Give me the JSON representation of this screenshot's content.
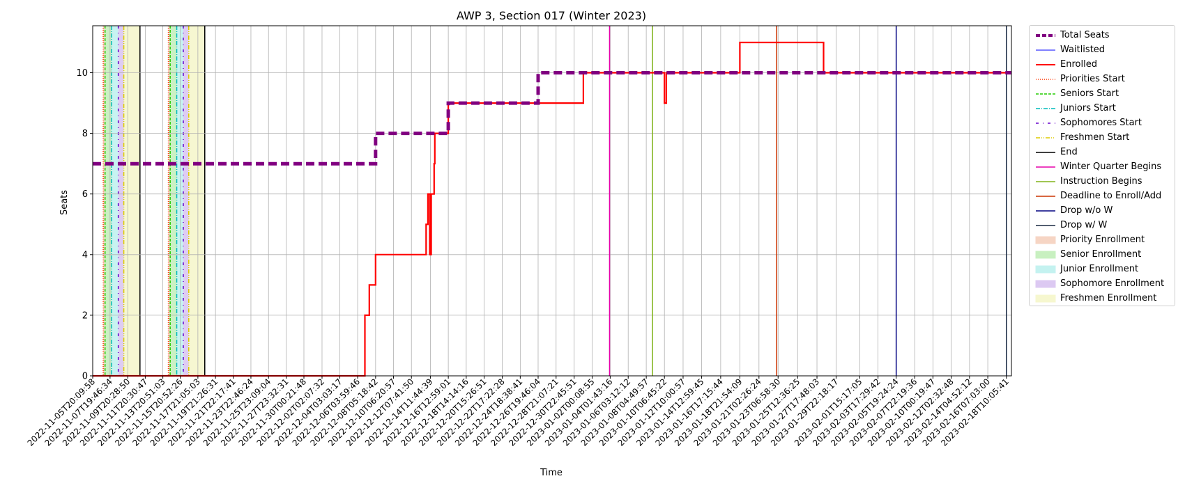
{
  "chart_data": {
    "type": "line",
    "title": "AWP 3, Section 017 (Winter 2023)",
    "xlabel": "Time",
    "ylabel": "Seats",
    "ylim": [
      0,
      11.55
    ],
    "yticks": [
      0,
      2,
      4,
      6,
      8,
      10
    ],
    "x_range": [
      "2022-11-05T20:09:58",
      "2023-02-19T00:00:00"
    ],
    "grid": true,
    "legend_position": "outside-right",
    "xtick_labels": [
      "2022-11-05T20:09:58",
      "2022-11-07T19:46:34",
      "2022-11-09T20:28:50",
      "2022-11-11T20:30:47",
      "2022-11-13T20:51:03",
      "2022-11-15T20:52:26",
      "2022-11-17T21:05:03",
      "2022-11-19T21:26:31",
      "2022-11-21T22:17:41",
      "2022-11-23T22:46:24",
      "2022-11-25T23:09:04",
      "2022-11-27T23:32:31",
      "2022-11-30T00:21:48",
      "2022-12-02T02:07:32",
      "2022-12-04T03:03:17",
      "2022-12-06T03:59:46",
      "2022-12-08T05:18:42",
      "2022-12-10T06:20:57",
      "2022-12-12T07:41:50",
      "2022-12-14T11:44:39",
      "2022-12-16T12:59:01",
      "2022-12-18T14:14:16",
      "2022-12-20T15:26:51",
      "2022-12-22T17:22:28",
      "2022-12-24T18:38:41",
      "2022-12-26T19:46:04",
      "2022-12-28T21:07:21",
      "2022-12-30T22:45:51",
      "2023-01-02T00:08:55",
      "2023-01-04T01:43:16",
      "2023-01-06T03:12:12",
      "2023-01-08T04:49:57",
      "2023-01-10T06:45:22",
      "2023-01-12T10:00:57",
      "2023-01-14T12:59:45",
      "2023-01-16T17:15:44",
      "2023-01-18T21:54:09",
      "2023-01-21T02:26:24",
      "2023-01-23T06:58:30",
      "2023-01-25T12:36:25",
      "2023-01-27T17:48:03",
      "2023-01-29T22:18:17",
      "2023-02-01T15:17:05",
      "2023-02-03T17:29:42",
      "2023-02-05T19:24:24",
      "2023-02-07T22:19:36",
      "2023-02-10T00:19:47",
      "2023-02-12T02:32:48",
      "2023-02-14T04:52:12",
      "2023-02-16T07:03:00",
      "2023-02-18T10:05:41"
    ],
    "series": [
      {
        "name": "Total Seats",
        "color": "#800080",
        "style": "dashed-thick",
        "points": [
          [
            "2022-11-05T20:09:58",
            7
          ],
          [
            "2022-12-08T05:18:42",
            7
          ],
          [
            "2022-12-08T05:18:42",
            8
          ],
          [
            "2022-12-16T12:59:01",
            8
          ],
          [
            "2022-12-16T12:59:01",
            9
          ],
          [
            "2022-12-26T19:46:04",
            9
          ],
          [
            "2022-12-26T19:46:04",
            10
          ],
          [
            "2023-02-19T00:00:00",
            10
          ]
        ]
      },
      {
        "name": "Waitlisted",
        "color": "#0000ff",
        "style": "solid-thin",
        "points": [
          [
            "2022-11-05T20:09:58",
            0
          ],
          [
            "2023-02-19T00:00:00",
            0
          ]
        ]
      },
      {
        "name": "Enrolled",
        "color": "#ff0000",
        "style": "solid-thick",
        "points": [
          [
            "2022-11-05T20:09:58",
            0
          ],
          [
            "2022-12-07T00:00:00",
            0
          ],
          [
            "2022-12-07T00:00:00",
            1
          ],
          [
            "2022-12-07T00:00:00",
            2
          ],
          [
            "2022-12-07T12:00:00",
            2
          ],
          [
            "2022-12-07T12:00:00",
            3
          ],
          [
            "2022-12-08T05:18:42",
            3
          ],
          [
            "2022-12-08T05:18:42",
            4
          ],
          [
            "2022-12-14T00:00:00",
            4
          ],
          [
            "2022-12-14T00:00:00",
            5
          ],
          [
            "2022-12-14T05:00:00",
            5
          ],
          [
            "2022-12-14T05:00:00",
            6
          ],
          [
            "2022-12-14T10:00:00",
            6
          ],
          [
            "2022-12-14T10:00:00",
            4
          ],
          [
            "2022-12-14T14:00:00",
            4
          ],
          [
            "2022-12-14T14:00:00",
            6
          ],
          [
            "2022-12-14T22:00:00",
            6
          ],
          [
            "2022-12-14T22:00:00",
            7
          ],
          [
            "2022-12-15T00:00:00",
            7
          ],
          [
            "2022-12-15T00:00:00",
            8
          ],
          [
            "2022-12-16T12:59:01",
            8
          ],
          [
            "2022-12-16T12:59:01",
            9
          ],
          [
            "2023-01-01T00:00:00",
            9
          ],
          [
            "2023-01-01T00:00:00",
            10
          ],
          [
            "2023-01-10T06:45:22",
            10
          ],
          [
            "2023-01-10T06:45:22",
            9
          ],
          [
            "2023-01-10T12:00:00",
            9
          ],
          [
            "2023-01-10T12:00:00",
            10
          ],
          [
            "2023-01-18T21:54:09",
            10
          ],
          [
            "2023-01-18T21:54:09",
            11
          ],
          [
            "2023-01-28T12:00:00",
            11
          ],
          [
            "2023-01-28T12:00:00",
            10
          ],
          [
            "2023-02-19T00:00:00",
            10
          ]
        ]
      }
    ],
    "phases": [
      {
        "starts": [
          "2022-11-07T01:00:00",
          "2022-11-14T12:00:00"
        ],
        "ends": [
          "2022-11-11T06:00:00",
          "2022-11-18T16:00:00"
        ]
      }
    ],
    "vertical_events": [
      {
        "name": "Winter Quarter Begins",
        "date": "2023-01-04T00:00:00",
        "color": "#e600aa"
      },
      {
        "name": "Instruction Begins",
        "date": "2023-01-08T22:00:00",
        "color": "#80b31a"
      },
      {
        "name": "Deadline to Enroll/Add",
        "date": "2023-01-23T03:00:00",
        "color": "#cc3300"
      },
      {
        "name": "Drop w/o W",
        "date": "2023-02-05T19:24:24",
        "color": "#000080"
      },
      {
        "name": "Drop w/ W",
        "date": "2023-02-18T10:05:41",
        "color": "#1a2a44"
      }
    ],
    "legend": [
      {
        "label": "Total Seats",
        "kind": "line",
        "color": "#800080",
        "dash": "6,3",
        "width": 4
      },
      {
        "label": "Waitlisted",
        "kind": "line",
        "color": "#0000ff",
        "dash": "",
        "width": 1
      },
      {
        "label": "Enrolled",
        "kind": "line",
        "color": "#ff0000",
        "dash": "",
        "width": 2
      },
      {
        "label": "Priorities Start",
        "kind": "line",
        "color": "#ff3300",
        "dash": "1,2",
        "width": 1.5
      },
      {
        "label": "Seniors Start",
        "kind": "line",
        "color": "#22cc00",
        "dash": "4,2",
        "width": 1.5
      },
      {
        "label": "Juniors Start",
        "kind": "line",
        "color": "#00bbbb",
        "dash": "6,2,1,2",
        "width": 1.5
      },
      {
        "label": "Sophomores Start",
        "kind": "line",
        "color": "#6600cc",
        "dash": "4,6,1,6",
        "width": 1.5
      },
      {
        "label": "Freshmen Start",
        "kind": "line",
        "color": "#ddcc00",
        "dash": "6,2,1,2,1,2",
        "width": 1.5
      },
      {
        "label": "End",
        "kind": "line",
        "color": "#000000",
        "dash": "",
        "width": 1.5
      },
      {
        "label": "Winter Quarter Begins",
        "kind": "line",
        "color": "#e600aa",
        "dash": "",
        "width": 1.5
      },
      {
        "label": "Instruction Begins",
        "kind": "line",
        "color": "#80b31a",
        "dash": "",
        "width": 1.5
      },
      {
        "label": "Deadline to Enroll/Add",
        "kind": "line",
        "color": "#cc3300",
        "dash": "",
        "width": 1.5
      },
      {
        "label": "Drop w/o W",
        "kind": "line",
        "color": "#000080",
        "dash": "",
        "width": 1.5
      },
      {
        "label": "Drop w/ W",
        "kind": "line",
        "color": "#1a2a44",
        "dash": "",
        "width": 1.5
      },
      {
        "label": "Priority Enrollment",
        "kind": "patch",
        "color": "#f6d5c4"
      },
      {
        "label": "Senior Enrollment",
        "kind": "patch",
        "color": "#c8f0c0"
      },
      {
        "label": "Junior Enrollment",
        "kind": "patch",
        "color": "#c4f2f0"
      },
      {
        "label": "Sophomore Enrollment",
        "kind": "patch",
        "color": "#dcc9f2"
      },
      {
        "label": "Freshmen Enrollment",
        "kind": "patch",
        "color": "#f6f7cf"
      }
    ]
  }
}
